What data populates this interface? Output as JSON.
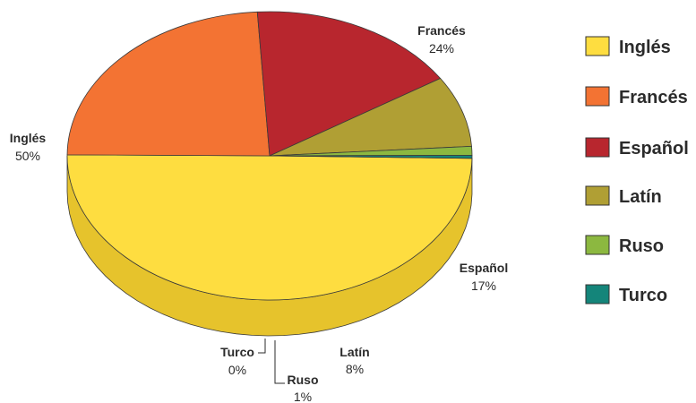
{
  "chart_data": {
    "type": "pie",
    "categories": [
      "Inglés",
      "Francés",
      "Español",
      "Latín",
      "Ruso",
      "Turco"
    ],
    "values": [
      50,
      24,
      17,
      8,
      1,
      0
    ],
    "value_labels": [
      "50%",
      "24%",
      "17%",
      "8%",
      "1%",
      "0%"
    ],
    "colors": [
      "#fedd40",
      "#f37333",
      "#b8262e",
      "#b09f34",
      "#8cb840",
      "#14857a"
    ],
    "side_colors": [
      "#e6c32c",
      "#d4612a",
      "#952a30",
      "#8f7a36",
      "#6d9a34",
      "#0e6b62"
    ],
    "legend": [
      "Inglés",
      "Francés",
      "Español",
      "Latín",
      "Ruso",
      "Turco"
    ],
    "legend_position": "right",
    "style": "3d"
  }
}
